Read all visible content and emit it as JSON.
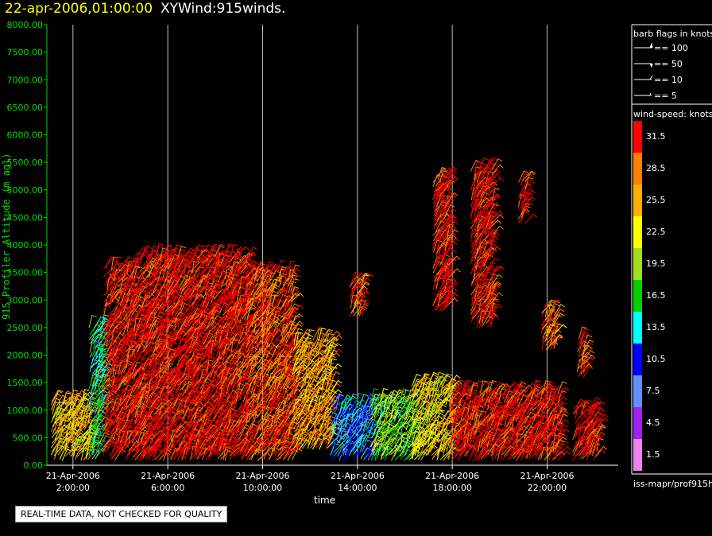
{
  "header": {
    "date": "22-apr-2006,01:00:00",
    "name": "XYWind:915winds."
  },
  "notice": "REAL-TIME DATA, NOT CHECKED FOR QUALITY",
  "source": "iss-mapr/prof915h",
  "legend": {
    "flags_title": "barb flags in knots",
    "flags": [
      {
        "label": "== 100",
        "knots": 100
      },
      {
        "label": "== 50",
        "knots": 50
      },
      {
        "label": "== 10",
        "knots": 10
      },
      {
        "label": "== 5",
        "knots": 5
      }
    ],
    "speed_title": "wind-speed: knots",
    "speed_bins": [
      {
        "label": "31.5",
        "color": "#ff0000"
      },
      {
        "label": "28.5",
        "color": "#ff8000"
      },
      {
        "label": "25.5",
        "color": "#ffb000"
      },
      {
        "label": "22.5",
        "color": "#ffff00"
      },
      {
        "label": "19.5",
        "color": "#a0e020"
      },
      {
        "label": "16.5",
        "color": "#00d000"
      },
      {
        "label": "13.5",
        "color": "#00ffff"
      },
      {
        "label": "10.5",
        "color": "#0000ff"
      },
      {
        "label": "7.5",
        "color": "#6090ff"
      },
      {
        "label": "4.5",
        "color": "#a020f0"
      },
      {
        "label": "1.5",
        "color": "#ee82ee"
      }
    ]
  },
  "chart_data": {
    "type": "scatter",
    "title": "",
    "xlabel": "time",
    "ylabel": "915 Profiler Altitude (m agl)",
    "y_ticks": [
      "0.00",
      "500.00",
      "1000.00",
      "1500.00",
      "2000.00",
      "2500.00",
      "3000.00",
      "3500.00",
      "4000.00",
      "4500.00",
      "5000.00",
      "5500.00",
      "6000.00",
      "6500.00",
      "7000.00",
      "7500.00",
      "8000.00"
    ],
    "ylim": [
      0,
      8000
    ],
    "x_ticks": [
      {
        "date": "21-Apr-2006",
        "time": "2:00:00",
        "hour": 2
      },
      {
        "date": "21-Apr-2006",
        "time": "6:00:00",
        "hour": 6
      },
      {
        "date": "21-Apr-2006",
        "time": "10:00:00",
        "hour": 10
      },
      {
        "date": "21-Apr-2006",
        "time": "14:00:00",
        "hour": 14
      },
      {
        "date": "21-Apr-2006",
        "time": "18:00:00",
        "hour": 18
      },
      {
        "date": "21-Apr-2006",
        "time": "22:00:00",
        "hour": 22
      }
    ],
    "xlim_hours": [
      0.9,
      25.0
    ],
    "grid": "vertical lines at x ticks",
    "wind_regions": [
      {
        "t0": 1.1,
        "t1": 2.7,
        "z0": 100,
        "z1": 1200,
        "speed": 24
      },
      {
        "t0": 2.7,
        "t1": 3.3,
        "z0": 100,
        "z1": 2500,
        "speed": 16
      },
      {
        "t0": 3.3,
        "t1": 4.6,
        "z0": 100,
        "z1": 3600,
        "speed": 32
      },
      {
        "t0": 4.6,
        "t1": 9.3,
        "z0": 100,
        "z1": 3800,
        "speed": 32
      },
      {
        "t0": 9.3,
        "t1": 11.3,
        "z0": 100,
        "z1": 3500,
        "speed": 30
      },
      {
        "t0": 11.3,
        "t1": 12.9,
        "z0": 300,
        "z1": 2300,
        "speed": 26
      },
      {
        "t0": 12.9,
        "t1": 14.6,
        "z0": 100,
        "z1": 1100,
        "speed": 11
      },
      {
        "t0": 14.6,
        "t1": 16.3,
        "z0": 100,
        "z1": 1200,
        "speed": 19
      },
      {
        "t0": 16.3,
        "t1": 17.9,
        "z0": 100,
        "z1": 1500,
        "speed": 23
      },
      {
        "t0": 17.9,
        "t1": 22.5,
        "z0": 100,
        "z1": 1300,
        "speed": 32
      },
      {
        "t0": 23.1,
        "t1": 24.1,
        "z0": 100,
        "z1": 1000,
        "speed": 32
      },
      {
        "t0": 17.2,
        "t1": 17.9,
        "z0": 2800,
        "z1": 5200,
        "speed": 32
      },
      {
        "t0": 18.8,
        "t1": 19.7,
        "z0": 2500,
        "z1": 5400,
        "speed": 32
      },
      {
        "t0": 13.7,
        "t1": 14.2,
        "z0": 2700,
        "z1": 3300,
        "speed": 30
      },
      {
        "t0": 20.8,
        "t1": 21.1,
        "z0": 4400,
        "z1": 5200,
        "speed": 32
      },
      {
        "t0": 23.3,
        "t1": 23.6,
        "z0": 1600,
        "z1": 2300,
        "speed": 30
      },
      {
        "t0": 21.8,
        "t1": 22.3,
        "z0": 2100,
        "z1": 2800,
        "speed": 28
      }
    ]
  }
}
